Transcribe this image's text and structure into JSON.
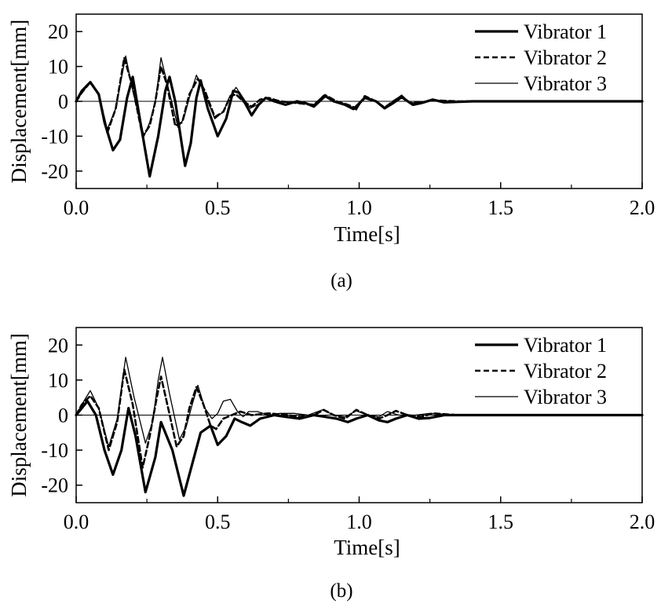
{
  "chart_data": [
    {
      "type": "line",
      "caption": "(a)",
      "xlabel": "Time[s]",
      "ylabel": "Displacement[mm]",
      "xlim": [
        0,
        2
      ],
      "ylim": [
        -25,
        25
      ],
      "xticks": [
        "0.0",
        "0.5",
        "1.0",
        "1.5",
        "2.0"
      ],
      "yticks": [
        "20",
        "10",
        "0",
        "-10",
        "-20"
      ],
      "legend_position": "top-right",
      "series": [
        {
          "name": "Vibrator 1",
          "style": "thick-solid",
          "points": [
            [
              0,
              0
            ],
            [
              0.02,
              3
            ],
            [
              0.05,
              5.5
            ],
            [
              0.08,
              2
            ],
            [
              0.1,
              -6
            ],
            [
              0.13,
              -14
            ],
            [
              0.155,
              -11
            ],
            [
              0.18,
              1
            ],
            [
              0.2,
              7
            ],
            [
              0.225,
              -5
            ],
            [
              0.26,
              -21.5
            ],
            [
              0.29,
              -10
            ],
            [
              0.315,
              3
            ],
            [
              0.33,
              7
            ],
            [
              0.35,
              0
            ],
            [
              0.385,
              -18.5
            ],
            [
              0.405,
              -12
            ],
            [
              0.425,
              1
            ],
            [
              0.44,
              6
            ],
            [
              0.465,
              -2
            ],
            [
              0.5,
              -10
            ],
            [
              0.53,
              -5
            ],
            [
              0.555,
              3
            ],
            [
              0.575,
              2.5
            ],
            [
              0.6,
              -1
            ],
            [
              0.62,
              -4
            ],
            [
              0.645,
              -1
            ],
            [
              0.67,
              1
            ],
            [
              0.7,
              0
            ],
            [
              0.74,
              -1
            ],
            [
              0.78,
              0
            ],
            [
              0.81,
              -0.5
            ],
            [
              0.84,
              -1.5
            ],
            [
              0.88,
              1.5
            ],
            [
              0.91,
              0
            ],
            [
              0.95,
              -1
            ],
            [
              0.98,
              -2.2
            ],
            [
              1.02,
              1
            ],
            [
              1.06,
              0
            ],
            [
              1.09,
              -2
            ],
            [
              1.12,
              -0.5
            ],
            [
              1.15,
              1.2
            ],
            [
              1.19,
              -1
            ],
            [
              1.22,
              -0.5
            ],
            [
              1.26,
              0.5
            ],
            [
              1.3,
              -0.3
            ],
            [
              1.4,
              0
            ],
            [
              1.6,
              0
            ],
            [
              2.0,
              0
            ]
          ]
        },
        {
          "name": "Vibrator 2",
          "style": "dashed",
          "points": [
            [
              0,
              0
            ],
            [
              0.02,
              2.5
            ],
            [
              0.05,
              5.5
            ],
            [
              0.08,
              2
            ],
            [
              0.11,
              -9
            ],
            [
              0.14,
              -2
            ],
            [
              0.17,
              12.5
            ],
            [
              0.2,
              4
            ],
            [
              0.235,
              -10
            ],
            [
              0.26,
              -7
            ],
            [
              0.28,
              0
            ],
            [
              0.3,
              10
            ],
            [
              0.32,
              5
            ],
            [
              0.35,
              -7
            ],
            [
              0.375,
              -6
            ],
            [
              0.4,
              2
            ],
            [
              0.43,
              6.5
            ],
            [
              0.455,
              3
            ],
            [
              0.49,
              -4.5
            ],
            [
              0.52,
              -3
            ],
            [
              0.545,
              1.5
            ],
            [
              0.565,
              2
            ],
            [
              0.59,
              0
            ],
            [
              0.62,
              -1.5
            ],
            [
              0.65,
              0.5
            ],
            [
              0.68,
              1
            ],
            [
              0.72,
              0
            ],
            [
              0.78,
              -0.5
            ],
            [
              0.84,
              -1
            ],
            [
              0.88,
              1.8
            ],
            [
              0.92,
              0
            ],
            [
              0.96,
              -1
            ],
            [
              0.99,
              -2
            ],
            [
              1.02,
              1.5
            ],
            [
              1.06,
              0
            ],
            [
              1.09,
              -1.8
            ],
            [
              1.12,
              0
            ],
            [
              1.15,
              1.5
            ],
            [
              1.18,
              -0.5
            ],
            [
              1.22,
              -0.3
            ],
            [
              1.26,
              0.3
            ],
            [
              1.35,
              0
            ],
            [
              2.0,
              0
            ]
          ]
        },
        {
          "name": "Vibrator 3",
          "style": "thin-solid",
          "points": [
            [
              0,
              0
            ],
            [
              0.02,
              2.5
            ],
            [
              0.05,
              5.5
            ],
            [
              0.08,
              2
            ],
            [
              0.11,
              -8
            ],
            [
              0.14,
              -2
            ],
            [
              0.175,
              13
            ],
            [
              0.2,
              3
            ],
            [
              0.24,
              -10
            ],
            [
              0.26,
              -6
            ],
            [
              0.28,
              0
            ],
            [
              0.3,
              12.5
            ],
            [
              0.325,
              4
            ],
            [
              0.36,
              -7.5
            ],
            [
              0.38,
              -5
            ],
            [
              0.4,
              1
            ],
            [
              0.425,
              7.5
            ],
            [
              0.45,
              3
            ],
            [
              0.49,
              -5
            ],
            [
              0.52,
              -3
            ],
            [
              0.54,
              1
            ],
            [
              0.565,
              4
            ],
            [
              0.59,
              1
            ],
            [
              0.615,
              -2
            ],
            [
              0.64,
              -1
            ],
            [
              0.67,
              1
            ],
            [
              0.71,
              0
            ],
            [
              0.78,
              -0.5
            ],
            [
              0.84,
              -1
            ],
            [
              0.875,
              1.8
            ],
            [
              0.91,
              0
            ],
            [
              0.96,
              -1
            ],
            [
              0.99,
              -2.5
            ],
            [
              1.02,
              1.5
            ],
            [
              1.06,
              0
            ],
            [
              1.09,
              -2
            ],
            [
              1.12,
              0
            ],
            [
              1.15,
              1.8
            ],
            [
              1.18,
              -0.5
            ],
            [
              1.22,
              -0.3
            ],
            [
              1.26,
              0.3
            ],
            [
              1.35,
              0
            ],
            [
              2.0,
              0
            ]
          ]
        }
      ]
    },
    {
      "type": "line",
      "caption": "(b)",
      "xlabel": "Time[s]",
      "ylabel": "Displacement[mm]",
      "xlim": [
        0,
        2
      ],
      "ylim": [
        -25,
        25
      ],
      "xticks": [
        "0.0",
        "0.5",
        "1.0",
        "1.5",
        "2.0"
      ],
      "yticks": [
        "20",
        "10",
        "0",
        "-10",
        "-20"
      ],
      "legend_position": "top-right",
      "series": [
        {
          "name": "Vibrator 1",
          "style": "thick-solid",
          "points": [
            [
              0,
              0
            ],
            [
              0.02,
              2
            ],
            [
              0.04,
              4
            ],
            [
              0.07,
              0
            ],
            [
              0.1,
              -10
            ],
            [
              0.13,
              -17
            ],
            [
              0.16,
              -10
            ],
            [
              0.185,
              2
            ],
            [
              0.21,
              -6
            ],
            [
              0.245,
              -22
            ],
            [
              0.28,
              -12
            ],
            [
              0.3,
              -2
            ],
            [
              0.34,
              -10
            ],
            [
              0.38,
              -23
            ],
            [
              0.41,
              -14
            ],
            [
              0.44,
              -5
            ],
            [
              0.475,
              -3
            ],
            [
              0.5,
              -8.5
            ],
            [
              0.53,
              -6
            ],
            [
              0.56,
              -1
            ],
            [
              0.585,
              -2
            ],
            [
              0.615,
              -3
            ],
            [
              0.65,
              -1
            ],
            [
              0.7,
              0
            ],
            [
              0.74,
              -0.5
            ],
            [
              0.79,
              -1
            ],
            [
              0.84,
              0
            ],
            [
              0.88,
              -0.5
            ],
            [
              0.92,
              -1
            ],
            [
              0.96,
              -2
            ],
            [
              0.99,
              -1
            ],
            [
              1.03,
              0
            ],
            [
              1.07,
              -1.5
            ],
            [
              1.1,
              -2
            ],
            [
              1.13,
              -1
            ],
            [
              1.17,
              0
            ],
            [
              1.21,
              -1
            ],
            [
              1.25,
              -0.8
            ],
            [
              1.3,
              0
            ],
            [
              1.4,
              0
            ],
            [
              2.0,
              0
            ]
          ]
        },
        {
          "name": "Vibrator 2",
          "style": "dashed",
          "points": [
            [
              0,
              0
            ],
            [
              0.02,
              3
            ],
            [
              0.05,
              5.5
            ],
            [
              0.08,
              2
            ],
            [
              0.115,
              -10
            ],
            [
              0.145,
              -2
            ],
            [
              0.17,
              13
            ],
            [
              0.2,
              3
            ],
            [
              0.235,
              -15
            ],
            [
              0.26,
              -6
            ],
            [
              0.285,
              5
            ],
            [
              0.3,
              11
            ],
            [
              0.325,
              2
            ],
            [
              0.355,
              -9
            ],
            [
              0.38,
              -6
            ],
            [
              0.4,
              2
            ],
            [
              0.425,
              8
            ],
            [
              0.45,
              3
            ],
            [
              0.475,
              -3
            ],
            [
              0.495,
              -4
            ],
            [
              0.52,
              -1
            ],
            [
              0.55,
              0
            ],
            [
              0.58,
              1
            ],
            [
              0.62,
              0
            ],
            [
              0.68,
              0.5
            ],
            [
              0.75,
              0
            ],
            [
              0.79,
              -0.5
            ],
            [
              0.84,
              0
            ],
            [
              0.875,
              1.5
            ],
            [
              0.91,
              0
            ],
            [
              0.95,
              -1
            ],
            [
              0.99,
              1.5
            ],
            [
              1.03,
              0
            ],
            [
              1.07,
              -1
            ],
            [
              1.1,
              0
            ],
            [
              1.13,
              1.2
            ],
            [
              1.17,
              0
            ],
            [
              1.22,
              -0.5
            ],
            [
              1.26,
              0.5
            ],
            [
              1.35,
              0
            ],
            [
              2.0,
              0
            ]
          ]
        },
        {
          "name": "Vibrator 3",
          "style": "thin-solid",
          "points": [
            [
              0,
              0
            ],
            [
              0.02,
              3
            ],
            [
              0.05,
              7
            ],
            [
              0.08,
              2
            ],
            [
              0.115,
              -9
            ],
            [
              0.145,
              -1
            ],
            [
              0.175,
              16.5
            ],
            [
              0.205,
              5
            ],
            [
              0.245,
              -8
            ],
            [
              0.27,
              -2
            ],
            [
              0.29,
              10
            ],
            [
              0.305,
              16.5
            ],
            [
              0.33,
              6
            ],
            [
              0.365,
              -7
            ],
            [
              0.39,
              -3
            ],
            [
              0.41,
              3
            ],
            [
              0.43,
              8.5
            ],
            [
              0.455,
              2
            ],
            [
              0.48,
              -1
            ],
            [
              0.5,
              0.5
            ],
            [
              0.52,
              4
            ],
            [
              0.545,
              4.5
            ],
            [
              0.57,
              1
            ],
            [
              0.59,
              -0.5
            ],
            [
              0.61,
              1
            ],
            [
              0.64,
              1
            ],
            [
              0.68,
              0
            ],
            [
              0.72,
              0.5
            ],
            [
              0.77,
              0.5
            ],
            [
              0.82,
              0
            ],
            [
              0.87,
              1.5
            ],
            [
              0.91,
              0
            ],
            [
              0.95,
              -0.5
            ],
            [
              0.99,
              1.2
            ],
            [
              1.03,
              0
            ],
            [
              1.07,
              -0.5
            ],
            [
              1.1,
              1
            ],
            [
              1.14,
              0
            ],
            [
              1.2,
              0
            ],
            [
              1.25,
              0.5
            ],
            [
              1.35,
              0
            ],
            [
              2.0,
              0
            ]
          ]
        }
      ]
    }
  ]
}
